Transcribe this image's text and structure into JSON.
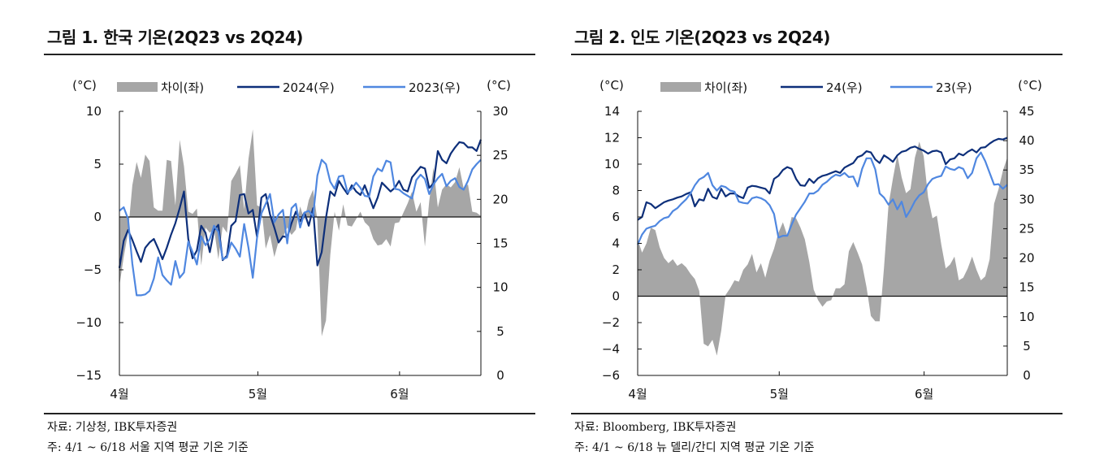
{
  "chart_data": [
    {
      "type": "line",
      "title": "그림 1. 한국 기온(2Q23 vs 2Q24)",
      "left_unit": "(°C)",
      "right_unit": "(°C)",
      "x_ticks": [
        "4월",
        "5월",
        "6월"
      ],
      "yleft_lim": [
        -15,
        10
      ],
      "yleft_ticks": [
        "10",
        "5",
        "0",
        "−5",
        "−10",
        "−15"
      ],
      "yright_lim": [
        0,
        30
      ],
      "yright_ticks": [
        "30",
        "25",
        "20",
        "15",
        "10",
        "5",
        "0"
      ],
      "legend_placement": "top",
      "colors": {
        "diff": "#a6a6a6",
        "y2024": "#0d2f7a",
        "y2023": "#4f87e0"
      },
      "series": [
        {
          "name": "차이(좌)",
          "kind": "area",
          "axis": "left",
          "values": [
            -6.5,
            -3.8,
            -1.5,
            3.0,
            5.2,
            3.7,
            5.9,
            5.3,
            0.9,
            0.6,
            0.6,
            5.4,
            5.3,
            1.1,
            7.3,
            4.8,
            0.5,
            0.3,
            0.8,
            -4.6,
            -1.0,
            -1.5,
            -1.1,
            -4.0,
            -0.9,
            -1.5,
            3.4,
            4.1,
            4.9,
            0.7,
            5.5,
            8.3,
            1.1,
            0.9,
            -3.0,
            -1.7,
            -3.8,
            -2.3,
            -1.9,
            -1.0,
            -1.7,
            -1.2,
            1.0,
            -0.3,
            1.6,
            2.6,
            -0.3,
            -11.3,
            -9.8,
            -3.6,
            0.5,
            -1.3,
            1.2,
            -0.8,
            -0.9,
            -0.2,
            0.5,
            -0.5,
            -0.9,
            -2.1,
            -2.7,
            -2.6,
            -2.1,
            -2.8,
            -0.6,
            -0.5,
            0.4,
            1.3,
            2.4,
            0.5,
            1.4,
            -2.8,
            1.5,
            4.7,
            0.9,
            2.6,
            3.1,
            2.8,
            3.3,
            4.7,
            2.7,
            3.1,
            0.5,
            0.4,
            0.1
          ]
        },
        {
          "name": "2024(우)",
          "kind": "line",
          "axis": "right",
          "values": [
            12.2,
            15.3,
            16.5,
            15.4,
            14.1,
            12.9,
            14.5,
            15.1,
            15.5,
            14.4,
            13.2,
            14.5,
            16.0,
            17.3,
            19.0,
            20.9,
            15.5,
            13.3,
            14.2,
            17.0,
            16.2,
            14.0,
            16.5,
            17.1,
            13.1,
            13.6,
            17.0,
            17.5,
            20.5,
            20.6,
            18.4,
            18.8,
            15.7,
            20.2,
            20.6,
            18.3,
            16.8,
            15.1,
            15.8,
            15.7,
            17.3,
            18.6,
            17.5,
            18.5,
            17.0,
            19.0,
            12.5,
            14.0,
            17.9,
            20.9,
            20.4,
            22.1,
            21.3,
            20.6,
            21.6,
            20.9,
            20.5,
            21.6,
            20.3,
            19.0,
            20.2,
            21.9,
            21.4,
            20.9,
            21.3,
            22.1,
            21.1,
            20.9,
            22.5,
            23.1,
            23.7,
            23.5,
            21.3,
            21.8,
            25.5,
            24.5,
            24.1,
            25.2,
            25.9,
            26.5,
            26.4,
            25.9,
            25.9,
            25.5,
            26.8
          ]
        },
        {
          "name": "2023(우)",
          "kind": "line",
          "axis": "right",
          "values": [
            18.7,
            19.1,
            17.8,
            12.7,
            9.1,
            9.1,
            9.2,
            9.6,
            11.0,
            13.4,
            11.4,
            10.8,
            10.3,
            13.0,
            11.1,
            11.7,
            15.2,
            14.0,
            12.6,
            15.8,
            14.8,
            15.5,
            17.0,
            16.3,
            13.2,
            13.4,
            15.1,
            14.4,
            13.5,
            17.2,
            14.5,
            11.1,
            15.7,
            18.4,
            19.5,
            20.6,
            17.4,
            18.3,
            18.8,
            15.0,
            19.0,
            19.5,
            16.8,
            18.5,
            18.7,
            18.1,
            22.7,
            24.5,
            24.0,
            22.0,
            21.2,
            22.6,
            22.7,
            20.8,
            21.2,
            21.9,
            21.3,
            20.4,
            20.3,
            22.6,
            23.5,
            23.2,
            24.4,
            24.2,
            21.2,
            21.1,
            20.7,
            20.4,
            20.1,
            22.2,
            22.8,
            22.3,
            20.6,
            21.7,
            22.4,
            22.9,
            21.5,
            22.1,
            22.4,
            21.4,
            21.1,
            22.1,
            23.4,
            24.0,
            24.5
          ]
        }
      ],
      "source": "자료: 기상청, IBK투자증권",
      "note": "주: 4/1 ~ 6/18 서울 지역 평균 기온 기준"
    },
    {
      "type": "line",
      "title": "그림 2. 인도 기온(2Q23 vs 2Q24)",
      "left_unit": "(°C)",
      "right_unit": "(°C)",
      "x_ticks": [
        "4월",
        "5월",
        "6월"
      ],
      "yleft_lim": [
        -6,
        14
      ],
      "yleft_ticks": [
        "14",
        "12",
        "10",
        "8",
        "6",
        "4",
        "2",
        "0",
        "−2",
        "−4",
        "−6"
      ],
      "yright_lim": [
        0,
        45
      ],
      "yright_ticks": [
        "45",
        "40",
        "35",
        "30",
        "25",
        "20",
        "15",
        "10",
        "5",
        "0"
      ],
      "legend_placement": "top",
      "colors": {
        "diff": "#a6a6a6",
        "y24": "#0d2f7a",
        "y23": "#4f87e0"
      },
      "series": [
        {
          "name": "차이(좌)",
          "kind": "area",
          "axis": "left",
          "values": [
            4.3,
            3.3,
            4.0,
            5.2,
            5.0,
            3.7,
            2.9,
            2.5,
            2.8,
            2.3,
            2.5,
            2.2,
            1.7,
            1.3,
            0.4,
            -3.6,
            -3.8,
            -3.3,
            -4.5,
            -2.6,
            0.1,
            0.6,
            1.2,
            1.1,
            2.0,
            2.4,
            3.2,
            1.8,
            2.5,
            1.4,
            2.7,
            3.6,
            4.8,
            5.6,
            4.6,
            6.0,
            5.9,
            5.2,
            4.3,
            2.6,
            0.5,
            -0.3,
            -0.8,
            -0.4,
            -0.3,
            0.6,
            0.6,
            0.9,
            3.4,
            4.1,
            3.3,
            2.4,
            0.7,
            -1.5,
            -1.9,
            -1.9,
            2.2,
            6.9,
            8.9,
            10.7,
            9.0,
            7.8,
            8.1,
            10.5,
            11.7,
            10.6,
            7.5,
            5.9,
            6.1,
            3.9,
            2.1,
            2.4,
            3.0,
            1.2,
            1.4,
            2.1,
            3.0,
            2.0,
            1.2,
            1.5,
            2.8,
            7.0,
            8.1,
            9.5,
            10.5
          ]
        },
        {
          "name": "24(우)",
          "kind": "line",
          "axis": "right",
          "values": [
            26.5,
            27.0,
            29.5,
            29.2,
            28.5,
            29.0,
            29.5,
            29.8,
            30.0,
            30.3,
            30.5,
            30.9,
            31.2,
            28.8,
            30.0,
            29.8,
            31.8,
            30.4,
            30.1,
            31.8,
            30.5,
            31.0,
            31.0,
            30.5,
            30.2,
            32.0,
            32.3,
            32.2,
            32.0,
            31.8,
            31.0,
            33.5,
            34.0,
            35.0,
            35.5,
            35.2,
            33.5,
            32.4,
            32.3,
            33.5,
            32.8,
            33.6,
            34.0,
            34.2,
            34.5,
            34.8,
            34.5,
            35.4,
            35.8,
            36.2,
            37.2,
            37.5,
            38.2,
            38.0,
            36.8,
            36.2,
            37.5,
            37.0,
            36.4,
            37.5,
            38.1,
            38.3,
            38.8,
            39.0,
            38.6,
            38.3,
            37.8,
            38.2,
            38.3,
            38.0,
            36.0,
            36.8,
            37.0,
            37.8,
            37.5,
            38.1,
            38.5,
            38.0,
            38.8,
            38.9,
            39.5,
            40.0,
            40.3,
            40.2,
            40.5
          ]
        },
        {
          "name": "23(우)",
          "kind": "line",
          "axis": "right",
          "values": [
            22.3,
            24.0,
            25.0,
            25.3,
            25.5,
            26.3,
            26.8,
            27.0,
            28.0,
            28.5,
            29.3,
            30.0,
            31.0,
            32.4,
            33.4,
            33.8,
            34.5,
            32.4,
            31.5,
            32.3,
            32.1,
            31.5,
            31.3,
            29.6,
            29.4,
            29.3,
            30.2,
            30.4,
            30.2,
            29.8,
            29.0,
            27.5,
            23.5,
            23.8,
            23.8,
            25.7,
            27.4,
            28.5,
            29.6,
            31.0,
            31.0,
            31.5,
            32.5,
            33.0,
            33.7,
            34.2,
            34.0,
            34.5,
            33.8,
            33.9,
            32.2,
            35.2,
            37.0,
            37.0,
            35.1,
            31.0,
            30.3,
            29.1,
            30.0,
            28.3,
            29.6,
            27.0,
            28.2,
            29.7,
            30.7,
            31.2,
            32.6,
            33.5,
            33.8,
            34.0,
            35.6,
            35.2,
            35.0,
            35.5,
            35.2,
            33.6,
            34.5,
            37.0,
            38.0,
            36.5,
            34.5,
            32.5,
            32.6,
            31.8,
            32.5
          ]
        }
      ],
      "source": "자료: Bloomberg, IBK투자증권",
      "note": "주: 4/1 ~ 6/18 뉴 델리/간디 지역 평균 기온 기준"
    }
  ]
}
